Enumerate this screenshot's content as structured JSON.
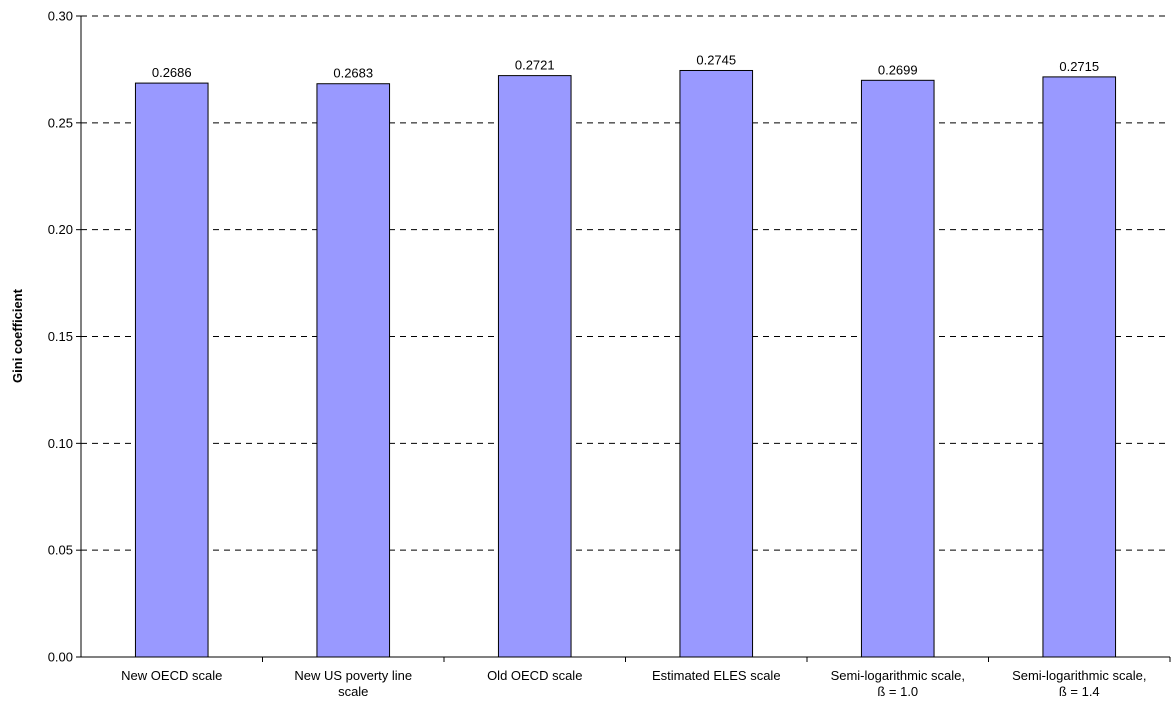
{
  "chart_data": {
    "type": "bar",
    "title": "",
    "xlabel": "",
    "ylabel": "Gini coefficient",
    "ylim": [
      0,
      0.3
    ],
    "yticks": [
      "0.00",
      "0.05",
      "0.10",
      "0.15",
      "0.20",
      "0.25",
      "0.30"
    ],
    "grid": "horizontal-dashed",
    "bar_color": "#9999ff",
    "categories": [
      [
        "New OECD scale"
      ],
      [
        "New US poverty line",
        "scale"
      ],
      [
        "Old OECD scale"
      ],
      [
        "Estimated ELES scale"
      ],
      [
        "Semi-logarithmic scale,",
        "ß = 1.0"
      ],
      [
        "Semi-logarithmic scale,",
        "ß = 1.4"
      ]
    ],
    "values": [
      0.2686,
      0.2683,
      0.2721,
      0.2745,
      0.2699,
      0.2715
    ],
    "data_labels": [
      "0.2686",
      "0.2683",
      "0.2721",
      "0.2745",
      "0.2699",
      "0.2715"
    ]
  }
}
